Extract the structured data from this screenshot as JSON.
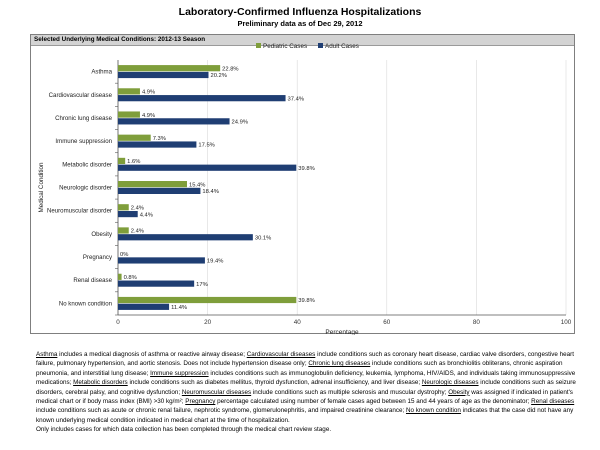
{
  "title": "Laboratory-Confirmed Influenza Hospitalizations",
  "subtitle": "Preliminary data as of Dec 29, 2012",
  "panel_title": "Selected Underlying Medical Conditions: 2012-13 Season",
  "colors": {
    "pediatric": "#7f9e3b",
    "adult": "#1f3e73"
  },
  "chart_data": {
    "type": "bar",
    "orientation": "horizontal",
    "title": "",
    "xlabel": "Percentage",
    "ylabel": "Medical Condition",
    "xlim": [
      0,
      100
    ],
    "xticks": [
      "0",
      "20",
      "40",
      "60",
      "80",
      "100"
    ],
    "legend_position": "top-right",
    "categories": [
      "Asthma",
      "Cardiovascular disease",
      "Chronic lung disease",
      "Immune suppression",
      "Metabolic disorder",
      "Neurologic disorder",
      "Neuromuscular disorder",
      "Obesity",
      "Pregnancy",
      "Renal disease",
      "No known condition"
    ],
    "series": [
      {
        "name": "Pediatric Cases",
        "values": [
          22.8,
          4.9,
          4.9,
          7.3,
          1.6,
          15.4,
          2.4,
          2.4,
          0,
          0.8,
          39.8
        ],
        "labels": [
          "22.8%",
          "4.9%",
          "4.9%",
          "7.3%",
          "1.6%",
          "15.4%",
          "2.4%",
          "2.4%",
          "0%",
          "0.8%",
          "39.8%"
        ]
      },
      {
        "name": "Adult Cases",
        "values": [
          20.2,
          37.4,
          24.9,
          17.5,
          39.8,
          18.4,
          4.4,
          30.1,
          19.4,
          17,
          11.4
        ],
        "labels": [
          "20.2%",
          "37.4%",
          "24.9%",
          "17.5%",
          "39.8%",
          "18.4%",
          "4.4%",
          "30.1%",
          "19.4%",
          "17%",
          "11.4%"
        ]
      }
    ]
  },
  "footnote": [
    {
      "u": "Asthma",
      "t": " includes a medical diagnosis of asthma or reactive airway disease; "
    },
    {
      "u": "Cardiovascular diseases",
      "t": " include conditions such as coronary heart disease, cardiac valve disorders, congestive heart failure, pulmonary hypertension, and aortic stenosis.  Does not include hypertension disease only; "
    },
    {
      "u": "Chronic lung diseases",
      "t": " include conditions such as bronchiolitis obliterans, chronic aspiration pneumonia, and interstitial lung disease; "
    },
    {
      "u": "Immune suppression",
      "t": " includes conditions such as immunoglobulin deficiency, leukemia, lymphoma, HIV/AIDS, and individuals taking immunosuppressive medications; "
    },
    {
      "u": "Metabolic disorders",
      "t": " include conditions such as diabetes mellitus, thyroid dysfunction, adrenal insufficiency, and liver disease; "
    },
    {
      "u": "Neurologic diseases",
      "t": " include conditions such as seizure disorders, cerebral palsy, and cognitive dysfunction; "
    },
    {
      "u": "Neuromuscular diseases",
      "t": " include conditions such as multiple sclerosis and muscular dystrophy; "
    },
    {
      "u": "Obesity",
      "t": " was assigned if indicated in patient's medical chart or if body mass index (BMI) >30 kg/m²; "
    },
    {
      "u": "Pregnancy",
      "t": " percentage calculated using number of female cases aged between 15 and 44 years of age as the denominator; "
    },
    {
      "u": "Renal diseases",
      "t": " include conditions such as acute or chronic renal failure, nephrotic syndrome, glomerulonephritis, and impaired creatinine clearance; "
    },
    {
      "u": "No known condition",
      "t": " indicates that the case did not have any known underlying medical condition indicated in medical chart at the time of hospitalization."
    }
  ],
  "footnote_last": "Only includes cases for which data collection has been completed through the medical chart review stage."
}
